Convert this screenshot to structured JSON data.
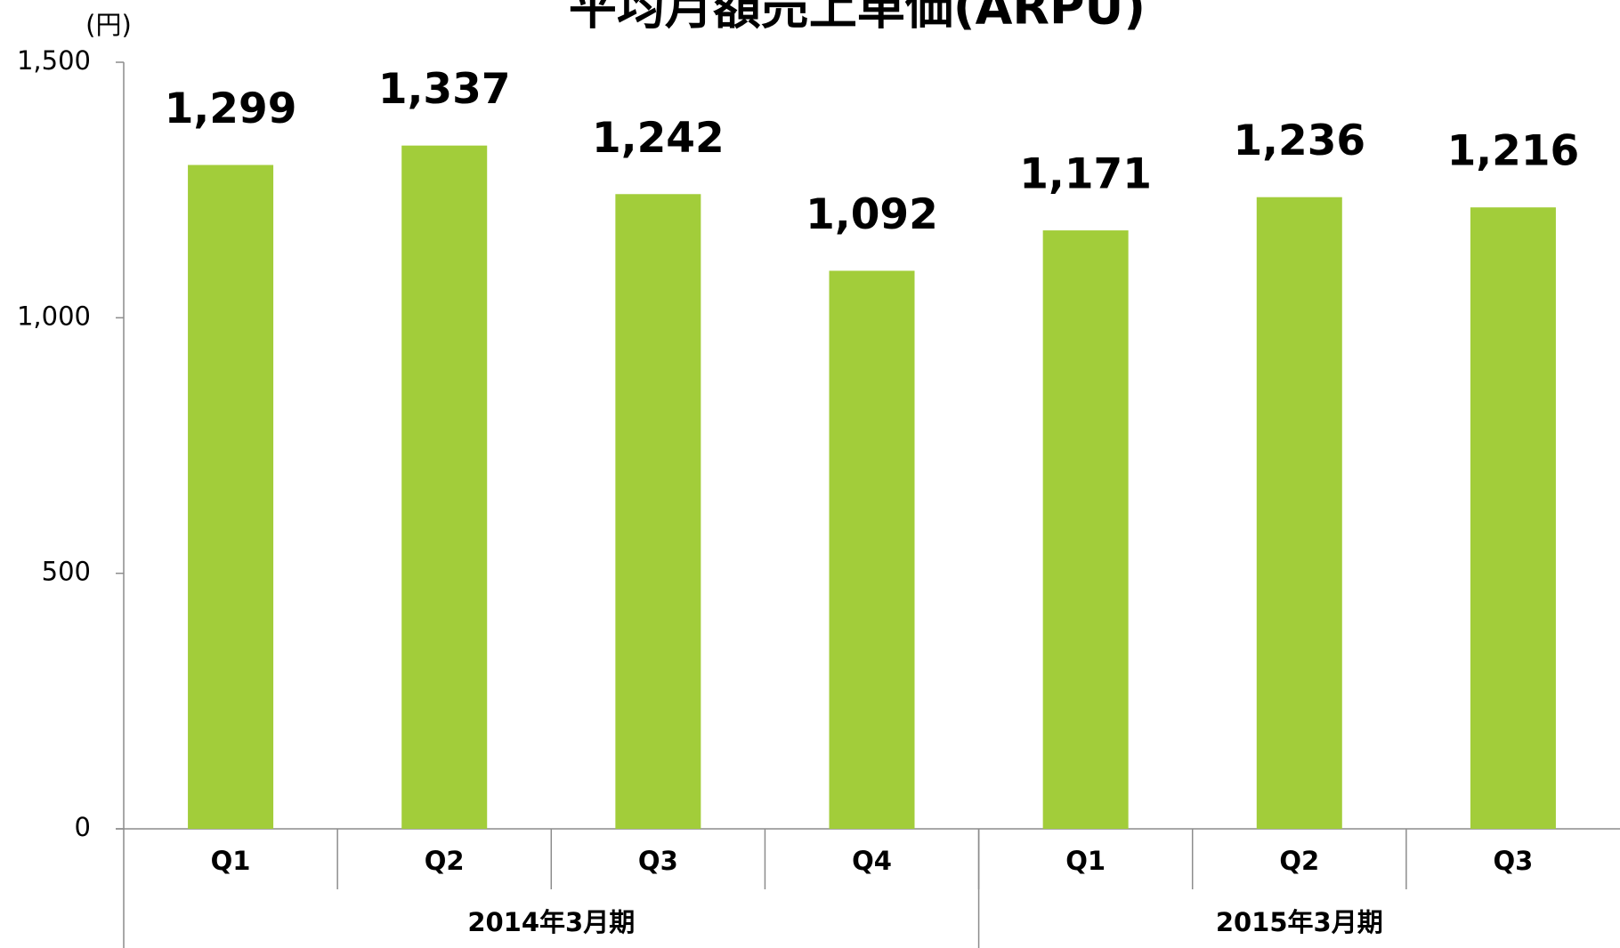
{
  "chart_data": {
    "type": "bar",
    "title": "平均月額売上単価(ARPU)",
    "y_unit": "(円)",
    "categories": [
      "Q1",
      "Q2",
      "Q3",
      "Q4",
      "Q1",
      "Q2",
      "Q3"
    ],
    "groups": [
      {
        "name": "2014年3月期",
        "count": 4
      },
      {
        "name": "2015年3月期",
        "count": 3
      }
    ],
    "values": [
      1299,
      1337,
      1242,
      1092,
      1171,
      1236,
      1216
    ],
    "value_labels": [
      "1,299",
      "1,337",
      "1,242",
      "1,092",
      "1,171",
      "1,236",
      "1,216"
    ],
    "color": "#a2cd3a",
    "ylim": [
      0,
      1500
    ],
    "yticks": [
      0,
      500,
      {
        "value": 1000,
        "label": "1,000"
      },
      {
        "value": 1500,
        "label": "1,500"
      }
    ],
    "grid": false
  }
}
